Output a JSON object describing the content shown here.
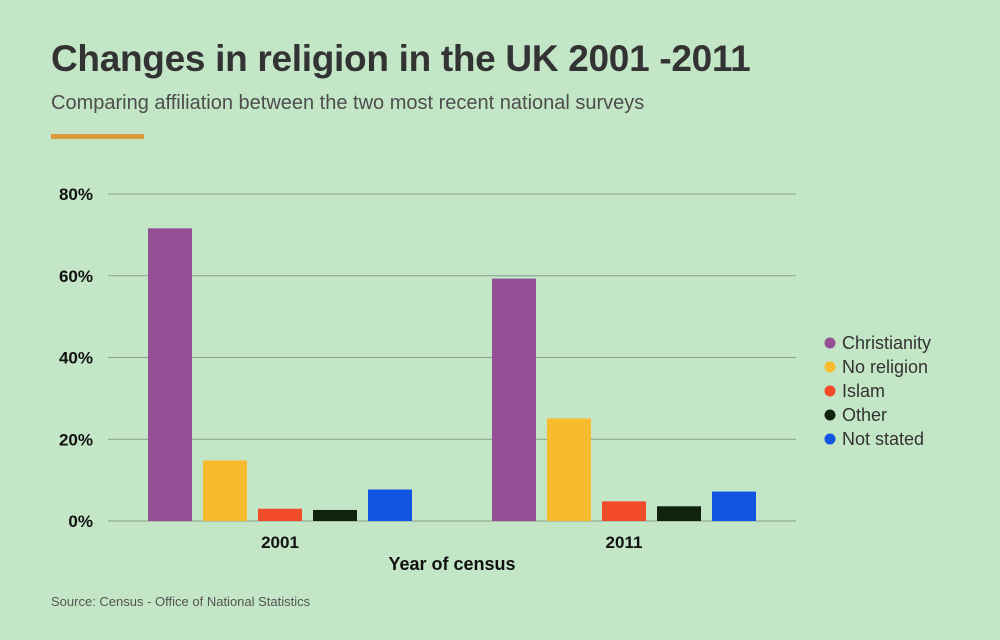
{
  "header": {
    "title": "Changes in religion in the UK 2001 -2011",
    "subtitle": "Comparing affiliation between the two most recent national surveys"
  },
  "footer": {
    "source": "Source: Census - Office of National Statistics"
  },
  "colors": {
    "accent": "#dd9a3c",
    "background": "#c3e6c7"
  },
  "chart_data": {
    "type": "bar",
    "title": "Changes in religion in the UK 2001 -2011",
    "subtitle": "Comparing affiliation between the two most recent national surveys",
    "xlabel": "Year of census",
    "ylabel": "",
    "categories": [
      "2001",
      "2011"
    ],
    "ylim": [
      0,
      80
    ],
    "yticks": [
      0,
      20,
      40,
      60,
      80
    ],
    "ytick_labels": [
      "0%",
      "20%",
      "40%",
      "60%",
      "80%"
    ],
    "grid": true,
    "legend_position": "right",
    "series": [
      {
        "name": "Christianity",
        "color": "#945095",
        "values": [
          71.6,
          59.3
        ]
      },
      {
        "name": "No religion",
        "color": "#f9bb2e",
        "values": [
          14.8,
          25.1
        ]
      },
      {
        "name": "Islam",
        "color": "#f34a29",
        "values": [
          3.0,
          4.8
        ]
      },
      {
        "name": "Other",
        "color": "#11220f",
        "values": [
          2.7,
          3.6
        ]
      },
      {
        "name": "Not stated",
        "color": "#1454e2",
        "values": [
          7.7,
          7.2
        ]
      }
    ]
  }
}
